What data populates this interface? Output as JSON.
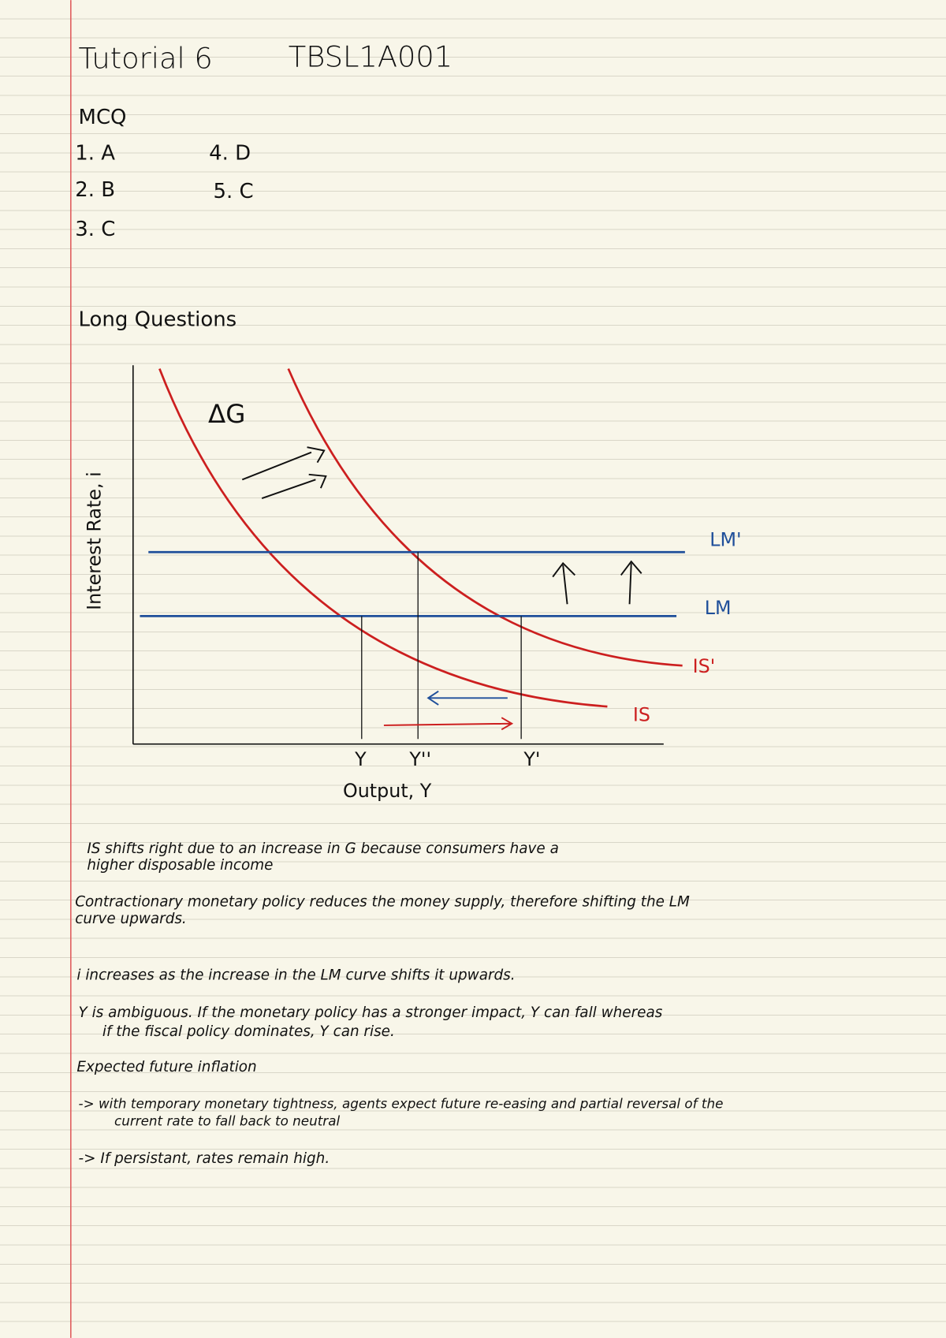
{
  "header": {
    "title": "Tutorial 6",
    "code": "TBSL1A001"
  },
  "mcq": {
    "heading": "MCQ",
    "answers": [
      "1. A",
      "2. B",
      "3. C",
      "4. D",
      "5. C"
    ]
  },
  "long_questions": {
    "heading": "Long Questions"
  },
  "diagram": {
    "y_axis_label": "Interest Rate, i",
    "x_axis_label": "Output, Y",
    "curves": {
      "lm_prime": "LM'",
      "lm": "LM",
      "is_prime": "IS'",
      "is": "IS"
    },
    "shift_label": "ΔG",
    "x_points": [
      "Y",
      "Y''",
      "Y'"
    ]
  },
  "notes": [
    {
      "lines": [
        "IS shifts right due to an increase in G because consumers have a",
        "higher disposable income"
      ]
    },
    {
      "lines": [
        "Contractionary monetary policy reduces the money supply, therefore shifting the LM",
        "curve upwards."
      ]
    },
    {
      "lines": [
        "i increases as the increase in the LM curve shifts it upwards."
      ]
    },
    {
      "lines": [
        "Y is ambiguous. If the monetary policy has a stronger impact, Y can fall whereas",
        "if the fiscal policy dominates, Y can rise."
      ]
    },
    {
      "lines": [
        "Expected future inflation"
      ]
    },
    {
      "lines": [
        "-> with temporary monetary tightness, agents expect future re-easing and partial reversal of the",
        "current rate to fall back to neutral"
      ]
    },
    {
      "lines": [
        "-> If persistant, rates remain high."
      ]
    }
  ]
}
